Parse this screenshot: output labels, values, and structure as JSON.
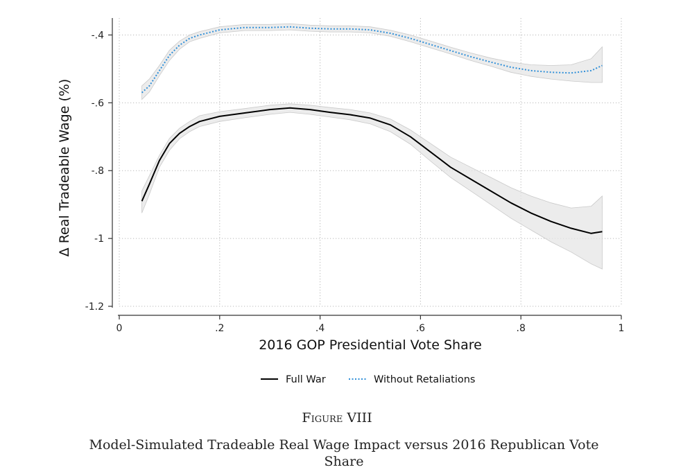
{
  "chart_data": {
    "type": "line",
    "xlabel": "2016 GOP Presidential Vote Share",
    "ylabel": "Δ Real Tradeable Wage (%)",
    "xlim": [
      0,
      1
    ],
    "ylim": [
      -1.2,
      -0.35
    ],
    "x_ticks": [
      0,
      0.2,
      0.4,
      0.6,
      0.8,
      1
    ],
    "x_tick_labels": [
      "0",
      ".2",
      ".4",
      ".6",
      ".8",
      "1"
    ],
    "y_ticks": [
      -0.4,
      -0.6,
      -0.8,
      -1,
      -1.2
    ],
    "y_tick_labels": [
      "-.4",
      "-.6",
      "-.8",
      "-1",
      "-1.2"
    ],
    "grid": true,
    "legend_position": "bottom",
    "series": [
      {
        "name": "Full War",
        "style": "solid",
        "color": "#000000",
        "x": [
          0.045,
          0.06,
          0.08,
          0.1,
          0.12,
          0.14,
          0.16,
          0.2,
          0.25,
          0.3,
          0.34,
          0.38,
          0.42,
          0.46,
          0.5,
          0.54,
          0.58,
          0.62,
          0.66,
          0.7,
          0.74,
          0.78,
          0.82,
          0.86,
          0.9,
          0.94,
          0.962
        ],
        "y": [
          -0.89,
          -0.84,
          -0.77,
          -0.72,
          -0.69,
          -0.67,
          -0.655,
          -0.64,
          -0.63,
          -0.62,
          -0.615,
          -0.62,
          -0.628,
          -0.635,
          -0.645,
          -0.665,
          -0.7,
          -0.745,
          -0.79,
          -0.825,
          -0.86,
          -0.895,
          -0.925,
          -0.95,
          -0.97,
          -0.985,
          -0.98
        ],
        "ci_upper": [
          -0.86,
          -0.815,
          -0.755,
          -0.705,
          -0.675,
          -0.655,
          -0.638,
          -0.626,
          -0.617,
          -0.607,
          -0.603,
          -0.607,
          -0.614,
          -0.62,
          -0.63,
          -0.648,
          -0.68,
          -0.72,
          -0.76,
          -0.79,
          -0.82,
          -0.85,
          -0.875,
          -0.895,
          -0.91,
          -0.905,
          -0.875
        ],
        "ci_lower": [
          -0.925,
          -0.87,
          -0.79,
          -0.74,
          -0.706,
          -0.685,
          -0.67,
          -0.655,
          -0.644,
          -0.634,
          -0.628,
          -0.634,
          -0.642,
          -0.65,
          -0.662,
          -0.685,
          -0.722,
          -0.772,
          -0.82,
          -0.86,
          -0.9,
          -0.94,
          -0.975,
          -1.01,
          -1.04,
          -1.075,
          -1.09
        ]
      },
      {
        "name": "Without Retaliations",
        "style": "dotted",
        "color": "#2f8fd8",
        "x": [
          0.045,
          0.06,
          0.08,
          0.1,
          0.12,
          0.14,
          0.16,
          0.2,
          0.25,
          0.3,
          0.34,
          0.38,
          0.42,
          0.46,
          0.5,
          0.54,
          0.58,
          0.62,
          0.66,
          0.7,
          0.74,
          0.78,
          0.82,
          0.86,
          0.9,
          0.94,
          0.962
        ],
        "y": [
          -0.57,
          -0.55,
          -0.505,
          -0.46,
          -0.43,
          -0.41,
          -0.4,
          -0.385,
          -0.378,
          -0.378,
          -0.376,
          -0.38,
          -0.382,
          -0.382,
          -0.385,
          -0.395,
          -0.41,
          -0.428,
          -0.446,
          -0.464,
          -0.48,
          -0.495,
          -0.505,
          -0.51,
          -0.512,
          -0.505,
          -0.49
        ],
        "ci_upper": [
          -0.55,
          -0.53,
          -0.49,
          -0.445,
          -0.418,
          -0.4,
          -0.39,
          -0.376,
          -0.369,
          -0.369,
          -0.367,
          -0.371,
          -0.373,
          -0.373,
          -0.376,
          -0.386,
          -0.4,
          -0.418,
          -0.436,
          -0.453,
          -0.468,
          -0.48,
          -0.488,
          -0.49,
          -0.488,
          -0.47,
          -0.435
        ],
        "ci_lower": [
          -0.59,
          -0.568,
          -0.52,
          -0.475,
          -0.442,
          -0.42,
          -0.41,
          -0.394,
          -0.387,
          -0.387,
          -0.385,
          -0.389,
          -0.391,
          -0.391,
          -0.394,
          -0.404,
          -0.42,
          -0.438,
          -0.456,
          -0.475,
          -0.492,
          -0.51,
          -0.522,
          -0.53,
          -0.536,
          -0.54,
          -0.54
        ]
      }
    ]
  },
  "caption": {
    "label": "Figure VIII",
    "title": "Model-Simulated Tradeable Real Wage Impact versus 2016 Republican Vote Share"
  }
}
